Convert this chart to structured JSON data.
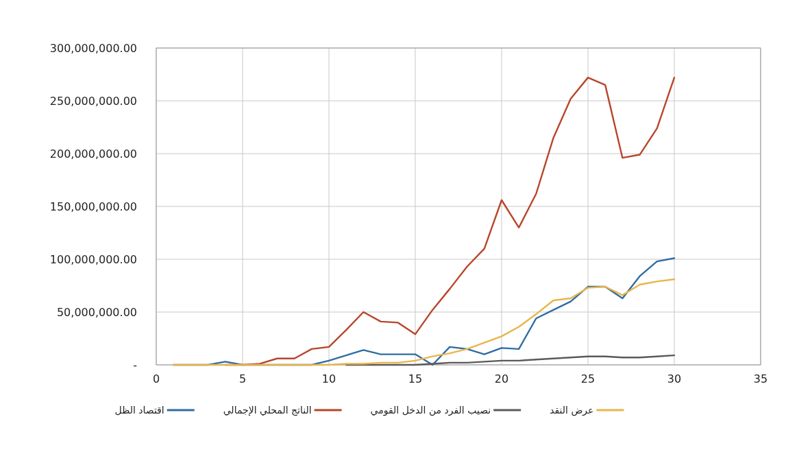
{
  "chart_data": {
    "type": "line",
    "x": [
      1,
      2,
      3,
      4,
      5,
      6,
      7,
      8,
      9,
      10,
      11,
      12,
      13,
      14,
      15,
      16,
      17,
      18,
      19,
      20,
      21,
      22,
      23,
      24,
      25,
      26,
      27,
      28,
      29,
      30
    ],
    "series": [
      {
        "name": "اقتصاد الظل",
        "color": "#2e6ca4",
        "values": [
          0,
          0,
          0,
          3000000,
          0,
          0,
          0,
          0,
          0,
          4000000,
          9000000,
          14000000,
          10000000,
          10000000,
          10000000,
          0,
          17000000,
          15000000,
          10000000,
          16000000,
          15000000,
          44000000,
          52000000,
          60000000,
          74000000,
          74000000,
          63000000,
          84000000,
          98000000,
          101000000
        ]
      },
      {
        "name": "الناتج المحلي الإجمالي",
        "color": "#b8452a",
        "values": [
          null,
          null,
          null,
          0,
          0,
          1000000,
          6000000,
          6000000,
          15000000,
          17000000,
          33000000,
          50000000,
          41000000,
          40000000,
          29000000,
          52000000,
          72000000,
          93000000,
          110000000,
          156000000,
          130000000,
          162000000,
          215000000,
          252000000,
          272000000,
          265000000,
          196000000,
          199000000,
          224000000,
          272000000
        ]
      },
      {
        "name": "نصيب الفرد من الدخل القومي",
        "color": "#5a5a5a",
        "values": [
          null,
          null,
          null,
          null,
          null,
          null,
          null,
          null,
          null,
          null,
          0,
          0,
          0,
          0,
          0,
          1000000,
          2000000,
          2000000,
          3000000,
          4000000,
          4000000,
          5000000,
          6000000,
          7000000,
          8000000,
          8000000,
          7000000,
          7000000,
          8000000,
          9000000
        ]
      },
      {
        "name": "عرض النقد",
        "color": "#e8b54a",
        "values": [
          0,
          0,
          0,
          0,
          0,
          0,
          0,
          0,
          0,
          0,
          1000000,
          1000000,
          2000000,
          2000000,
          4000000,
          8000000,
          11000000,
          15000000,
          21000000,
          27000000,
          36000000,
          48000000,
          61000000,
          63000000,
          73000000,
          74000000,
          66000000,
          76000000,
          79000000,
          81000000
        ]
      }
    ],
    "xlim": [
      0,
      35
    ],
    "xticks": [
      0,
      5,
      10,
      15,
      20,
      25,
      30,
      35
    ],
    "ylim": [
      0,
      300000000
    ],
    "yticks": [
      {
        "value": 0,
        "label": "-"
      },
      {
        "value": 50000000,
        "label": "50,000,000.00"
      },
      {
        "value": 100000000,
        "label": "100,000,000.00"
      },
      {
        "value": 150000000,
        "label": "150,000,000.00"
      },
      {
        "value": 200000000,
        "label": "200,000,000.00"
      },
      {
        "value": 250000000,
        "label": "250,000,000.00"
      },
      {
        "value": 300000000,
        "label": "300,000,000.00"
      }
    ],
    "grid": true,
    "legend": "bottom",
    "marker": "none",
    "line_style": "solid"
  }
}
